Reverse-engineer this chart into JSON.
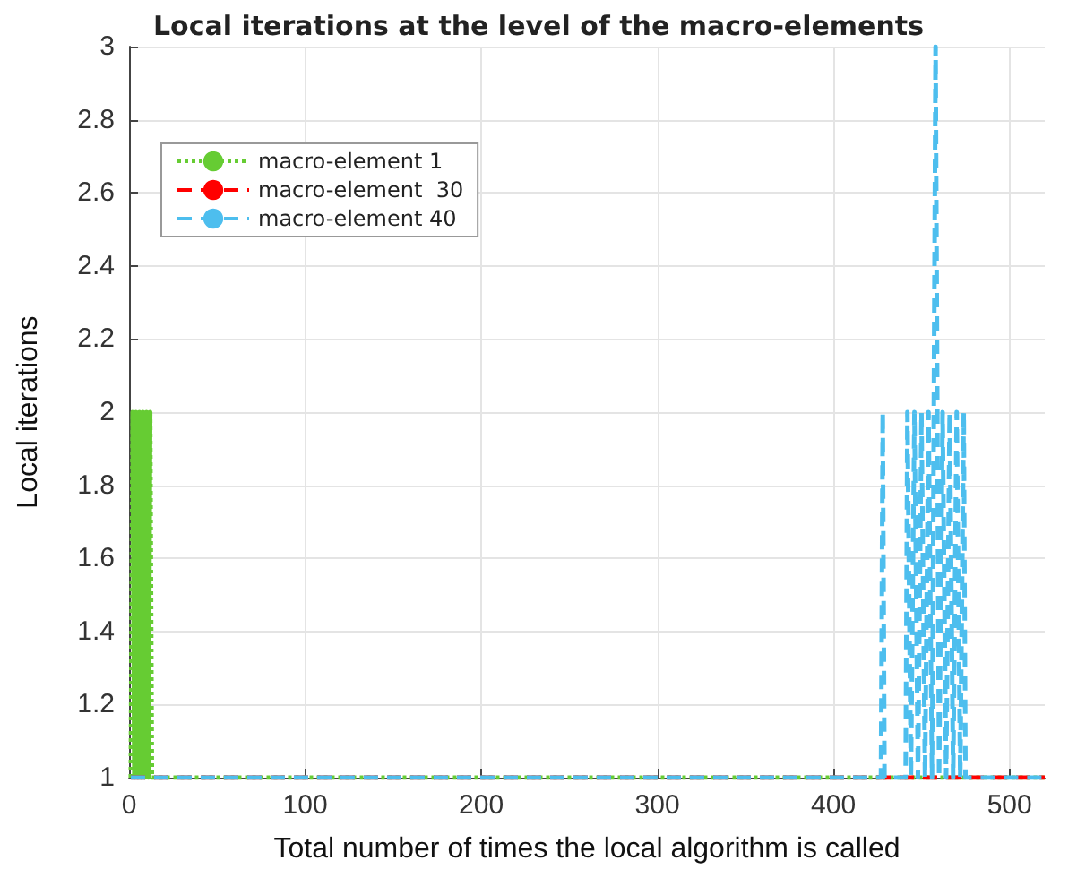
{
  "chart_data": {
    "type": "line",
    "title": "Local iterations at the level of the macro-elements",
    "xlabel": "Total number of times the local algorithm is called",
    "ylabel": "Local iterations",
    "series": [
      {
        "name": "macro-element 1",
        "color": "#66cc33",
        "line_style": "dotted",
        "x": [
          1,
          2,
          3,
          4,
          5,
          6,
          7,
          8,
          9,
          10,
          11,
          12,
          13,
          14,
          520
        ],
        "values": [
          1,
          2,
          1,
          2,
          1,
          2,
          1,
          2,
          1,
          2,
          1,
          2,
          1,
          1,
          1
        ]
      },
      {
        "name": "macro-element  30",
        "color": "#ff0000",
        "line_style": "dashed",
        "x": [
          1,
          520
        ],
        "values": [
          1,
          1
        ]
      },
      {
        "name": "macro-element 40",
        "color": "#4dbeee",
        "line_style": "dashed",
        "x": [
          1,
          427,
          428,
          429,
          441,
          442,
          444,
          446,
          448,
          450,
          452,
          454,
          456,
          458,
          460,
          462,
          464,
          466,
          468,
          470,
          472,
          474,
          475,
          520
        ],
        "values": [
          1,
          1,
          2,
          1,
          1,
          2,
          1,
          2,
          1,
          2,
          1,
          2,
          1,
          3,
          1,
          2,
          1,
          2,
          1,
          2,
          1,
          2,
          1,
          1
        ]
      }
    ],
    "xlim": [
      0,
      520
    ],
    "xticks": [
      0,
      100,
      200,
      300,
      400,
      500
    ],
    "ylim": [
      1,
      3
    ],
    "yticks": [
      1,
      1.2,
      1.4,
      1.6,
      1.8,
      2,
      2.2,
      2.4,
      2.6,
      2.8,
      3
    ],
    "grid": true,
    "legend": "top left",
    "marker": "none"
  }
}
